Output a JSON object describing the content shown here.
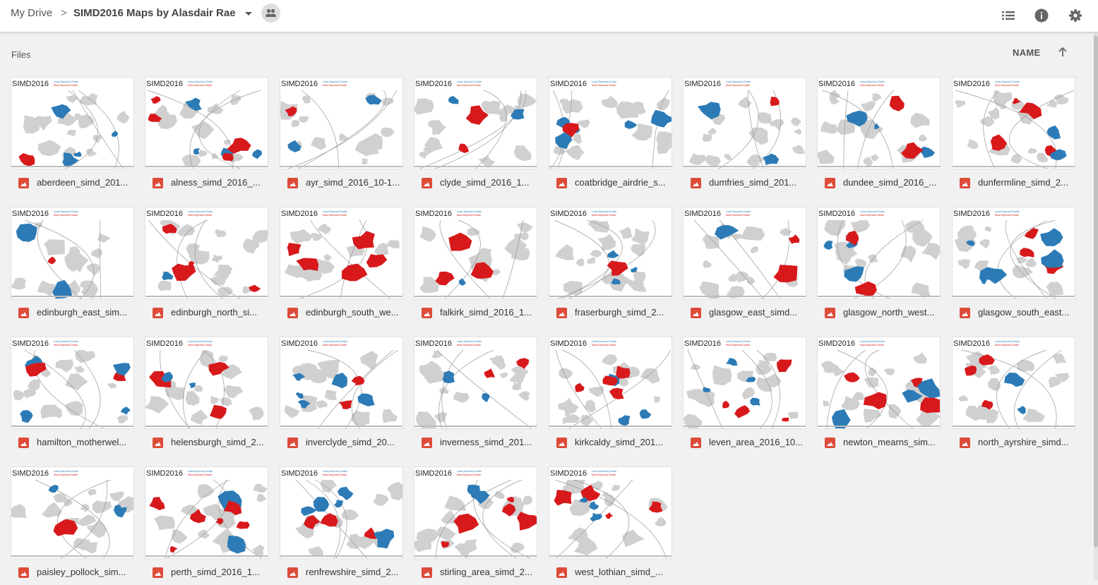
{
  "breadcrumb": {
    "root": "My Drive",
    "separator": ">",
    "current": "SIMD2016 Maps by Alasdair Rae"
  },
  "toolbar": {
    "shared_icon": "people-icon",
    "view_icon": "list-view-icon",
    "info_icon": "info-icon",
    "settings_icon": "gear-icon"
  },
  "section_label": "Files",
  "sort": {
    "label": "NAME",
    "direction": "ascending"
  },
  "colors": {
    "most_deprived": "#d7191c",
    "least_deprived": "#2c7bb6",
    "file_icon": "#dd4b39"
  },
  "thumbnail": {
    "title": "SIMD2016",
    "legend_least": "Least Deprived Decile",
    "legend_most": "Most Deprived Decile"
  },
  "files": [
    "aberdeen_simd_201...",
    "alness_simd_2016_...",
    "ayr_simd_2016_10-1...",
    "clyde_simd_2016_1...",
    "coatbridge_airdrie_s...",
    "dumfries_simd_201...",
    "dundee_simd_2016_...",
    "dunfermline_simd_2...",
    "edinburgh_east_sim...",
    "edinburgh_north_si...",
    "edinburgh_south_we...",
    "falkirk_simd_2016_1...",
    "fraserburgh_simd_2...",
    "glasgow_east_simd...",
    "glasgow_north_west...",
    "glasgow_south_east...",
    "hamilton_motherwel...",
    "helensburgh_simd_2...",
    "inverclyde_simd_20...",
    "inverness_simd_201...",
    "kirkcaldy_simd_201...",
    "leven_area_2016_10...",
    "newton_mearns_sim...",
    "north_ayrshire_simd...",
    "paisley_pollock_sim...",
    "perth_simd_2016_1...",
    "renfrewshire_simd_2...",
    "stirling_area_simd_2...",
    "west_lothian_simd_..."
  ]
}
